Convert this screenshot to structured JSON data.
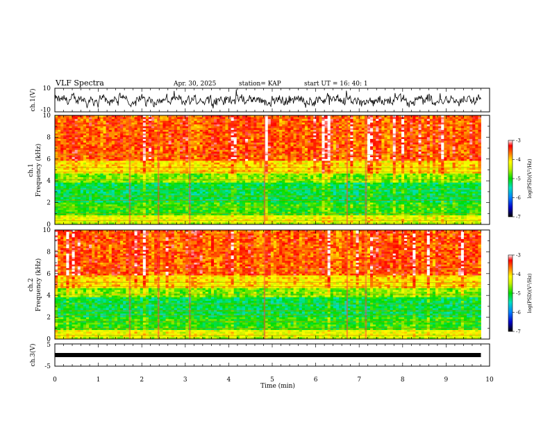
{
  "header": {
    "title": "VLF Spectra",
    "date": "Apr. 30, 2025",
    "station": "station= KAP",
    "start": "start  UT  =   16: 40: 1"
  },
  "chart_data": [
    {
      "type": "line",
      "name": "ch1-waveform",
      "ylabel": "ch.1(V)",
      "ylim": [
        -10,
        10
      ],
      "yticks": [
        "10",
        "-10"
      ],
      "xlim": [
        0,
        10
      ],
      "color": "#000000"
    },
    {
      "type": "heatmap",
      "name": "ch1-spectrogram",
      "ylabel_line1": "ch.1",
      "ylabel_line2": "Frequency  (kHz)",
      "ylim": [
        0,
        10
      ],
      "yticks": [
        "0",
        "2",
        "4",
        "6",
        "8",
        "10"
      ],
      "xlim": [
        0,
        9.8
      ],
      "colorbar": {
        "label": "log(PSD)(V²/Hz)",
        "range": [
          -7,
          -3
        ],
        "ticks": [
          "-3",
          "-4",
          "-5",
          "-6",
          "-7"
        ]
      }
    },
    {
      "type": "heatmap",
      "name": "ch2-spectrogram",
      "ylabel_line1": "ch.2",
      "ylabel_line2": "Frequency  (kHz)",
      "ylim": [
        0,
        10
      ],
      "yticks": [
        "0",
        "2",
        "4",
        "6",
        "8",
        "10"
      ],
      "xlim": [
        0,
        9.8
      ],
      "colorbar": {
        "label": "log(PSD)(V²/Hz)",
        "range": [
          -7,
          -3
        ],
        "ticks": [
          "-3",
          "-4",
          "-5",
          "-6",
          "-7"
        ]
      }
    },
    {
      "type": "line",
      "name": "ch3-waveform",
      "ylabel": "ch.3(V)",
      "ylim": [
        -5,
        5
      ],
      "yticks": [
        "5",
        "-5"
      ],
      "xlim": [
        0,
        10
      ],
      "xlabel": "Time  (min)",
      "xticks": [
        "0",
        "1",
        "2",
        "3",
        "4",
        "5",
        "6",
        "7",
        "8",
        "9",
        "10"
      ],
      "value_level": 0
    }
  ]
}
